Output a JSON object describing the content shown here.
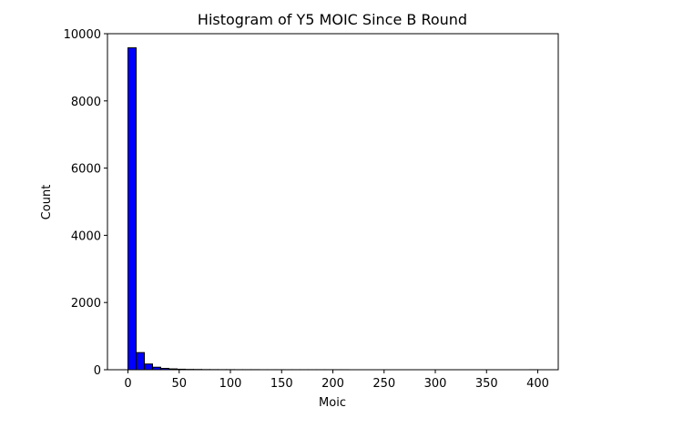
{
  "chart_data": {
    "type": "bar",
    "title": "Histogram of Y5 MOIC Since B Round",
    "xlabel": "Moic",
    "ylabel": "Count",
    "xlim": [
      -20,
      420
    ],
    "ylim": [
      0,
      10000
    ],
    "xticks": [
      0,
      50,
      100,
      150,
      200,
      250,
      300,
      350,
      400
    ],
    "yticks": [
      0,
      2000,
      4000,
      6000,
      8000,
      10000
    ],
    "bin_width": 8,
    "bin_start": 0,
    "values": [
      9580,
      510,
      170,
      75,
      40,
      25,
      15,
      10,
      8,
      5,
      4,
      3,
      3,
      2,
      2,
      2,
      1,
      1,
      1,
      1,
      1,
      1,
      1,
      1,
      1,
      1,
      1,
      0,
      0,
      0,
      0,
      0,
      0,
      0,
      0,
      0,
      0,
      0,
      0,
      0,
      0,
      0,
      0,
      0,
      0,
      0,
      0,
      0,
      0,
      1
    ],
    "colors": {
      "bar_fill": "#0000ff",
      "bar_edge": "#000000"
    },
    "grid": false,
    "legend": "none"
  }
}
